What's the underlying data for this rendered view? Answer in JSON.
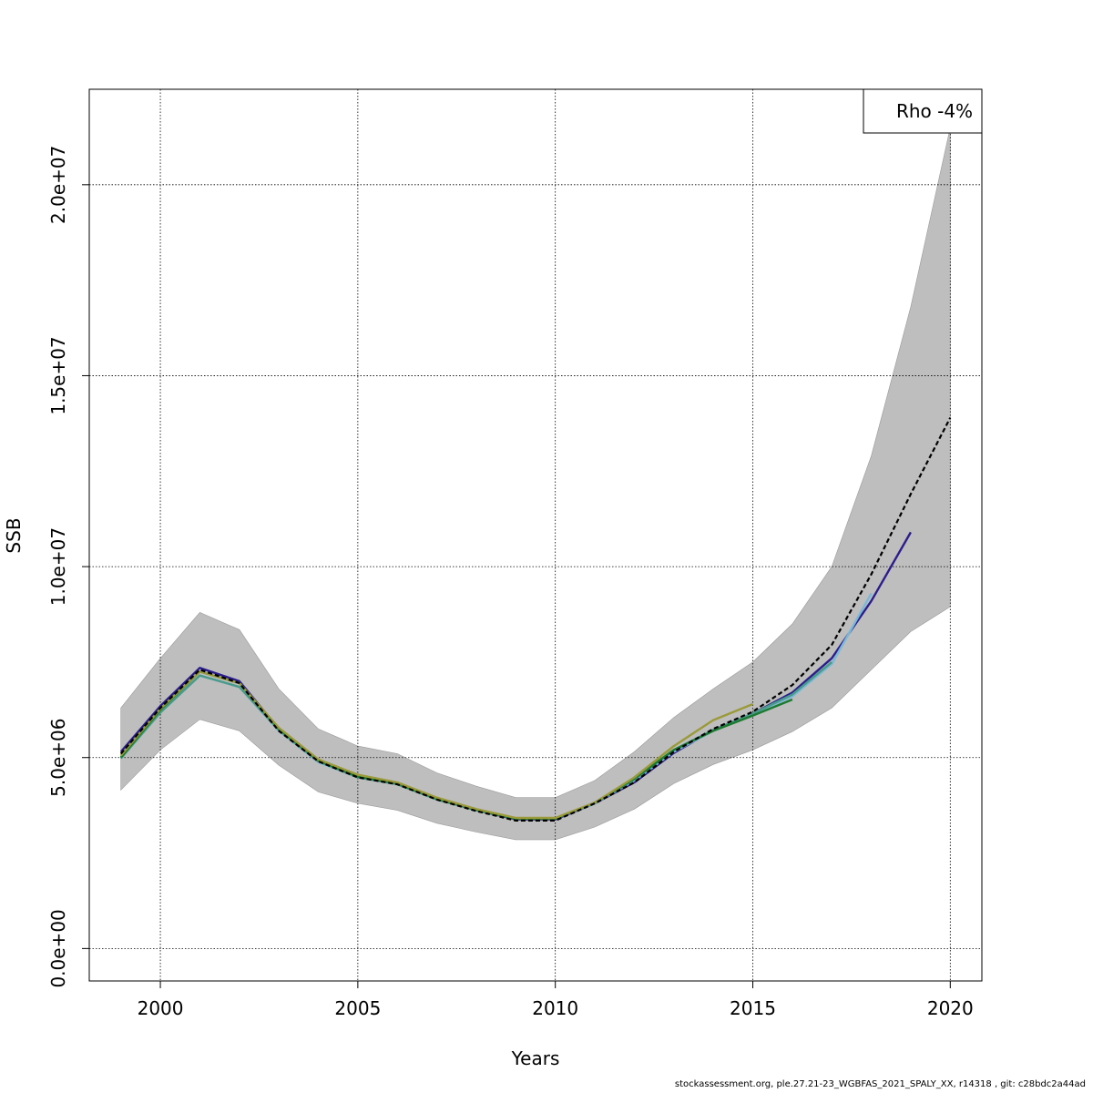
{
  "chart_data": {
    "type": "line",
    "title": "",
    "xlabel": "Years",
    "ylabel": "SSB",
    "xlim": [
      1998.2,
      2020.8
    ],
    "ylim": [
      -850000,
      22500000
    ],
    "x_ticks": [
      2000,
      2005,
      2010,
      2015,
      2020
    ],
    "x_tick_labels": [
      "2000",
      "2005",
      "2010",
      "2015",
      "2020"
    ],
    "y_ticks": [
      0,
      5000000,
      10000000,
      15000000,
      20000000
    ],
    "y_tick_labels": [
      "0.0e+00",
      "5.0e+06",
      "1.0e+07",
      "1.5e+07",
      "2.0e+07"
    ],
    "grid": true,
    "legend": {
      "text": "Rho -4%",
      "placement": "top-right"
    },
    "confidence_band": {
      "color": "#bebebe",
      "x": [
        1999,
        2000,
        2001,
        2002,
        2003,
        2004,
        2005,
        2006,
        2007,
        2008,
        2009,
        2010,
        2011,
        2012,
        2013,
        2014,
        2015,
        2016,
        2017,
        2018,
        2019,
        2020
      ],
      "upper": [
        6300000,
        7600000,
        8800000,
        8350000,
        6800000,
        5750000,
        5300000,
        5100000,
        4600000,
        4250000,
        3950000,
        3950000,
        4400000,
        5150000,
        6050000,
        6800000,
        7500000,
        8500000,
        10000000,
        12900000,
        16800000,
        21500000
      ],
      "lower": [
        4150000,
        5200000,
        6000000,
        5700000,
        4800000,
        4100000,
        3800000,
        3620000,
        3280000,
        3050000,
        2850000,
        2850000,
        3180000,
        3650000,
        4320000,
        4820000,
        5200000,
        5680000,
        6300000,
        7300000,
        8300000,
        8950000
      ]
    },
    "series": [
      {
        "color": "#000000",
        "dashed": true,
        "x": [
          1999,
          2000,
          2001,
          2002,
          2003,
          2004,
          2005,
          2006,
          2007,
          2008,
          2009,
          2010,
          2011,
          2012,
          2013,
          2014,
          2015,
          2016,
          2017,
          2018,
          2019,
          2020
        ],
        "values": [
          5100000,
          6300000,
          7300000,
          6950000,
          5700000,
          4900000,
          4480000,
          4300000,
          3900000,
          3600000,
          3350000,
          3350000,
          3800000,
          4350000,
          5150000,
          5750000,
          6200000,
          6900000,
          7950000,
          9800000,
          11900000,
          13900000
        ]
      },
      {
        "color": "#2b1d8c",
        "x": [
          1999,
          2000,
          2001,
          2002,
          2003,
          2004,
          2005,
          2006,
          2007,
          2008,
          2009,
          2010,
          2011,
          2012,
          2013,
          2014,
          2015,
          2016,
          2017,
          2018,
          2019
        ],
        "values": [
          5150000,
          6350000,
          7350000,
          7000000,
          5750000,
          4900000,
          4500000,
          4320000,
          3920000,
          3620000,
          3380000,
          3380000,
          3800000,
          4350000,
          5120000,
          5720000,
          6150000,
          6700000,
          7600000,
          9100000,
          10900000
        ]
      },
      {
        "color": "#7ab8d8",
        "x": [
          1999,
          2000,
          2001,
          2002,
          2003,
          2004,
          2005,
          2006,
          2007,
          2008,
          2009,
          2010,
          2011,
          2012,
          2013,
          2014,
          2015,
          2016,
          2017,
          2018
        ],
        "values": [
          5000000,
          6200000,
          7150000,
          6850000,
          5700000,
          4880000,
          4480000,
          4300000,
          3900000,
          3620000,
          3400000,
          3400000,
          3800000,
          4400000,
          5150000,
          5700000,
          6150000,
          6600000,
          7450000,
          9300000
        ]
      },
      {
        "color": "#4a9a8a",
        "x": [
          1999,
          2000,
          2001,
          2002,
          2003,
          2004,
          2005,
          2006,
          2007,
          2008,
          2009,
          2010,
          2011,
          2012,
          2013,
          2014,
          2015,
          2016,
          2017
        ],
        "values": [
          4980000,
          6180000,
          7150000,
          6850000,
          5720000,
          4900000,
          4480000,
          4300000,
          3900000,
          3620000,
          3400000,
          3400000,
          3800000,
          4420000,
          5200000,
          5720000,
          6150000,
          6650000,
          7500000
        ]
      },
      {
        "color": "#1a7a2e",
        "x": [
          1999,
          2000,
          2001,
          2002,
          2003,
          2004,
          2005,
          2006,
          2007,
          2008,
          2009,
          2010,
          2011,
          2012,
          2013,
          2014,
          2015,
          2016
        ],
        "values": [
          5000000,
          6250000,
          7250000,
          6950000,
          5750000,
          4920000,
          4500000,
          4320000,
          3920000,
          3630000,
          3400000,
          3400000,
          3820000,
          4450000,
          5200000,
          5700000,
          6100000,
          6520000
        ]
      },
      {
        "color": "#9a9a3a",
        "x": [
          1999,
          2000,
          2001,
          2002,
          2003,
          2004,
          2005,
          2006,
          2007,
          2008,
          2009,
          2010,
          2011,
          2012,
          2013,
          2014,
          2015
        ],
        "values": [
          5050000,
          6280000,
          7250000,
          6950000,
          5780000,
          4950000,
          4550000,
          4350000,
          3950000,
          3650000,
          3420000,
          3420000,
          3820000,
          4480000,
          5300000,
          5980000,
          6400000
        ]
      }
    ]
  },
  "footer": "stockassessment.org, ple.27.21-23_WGBFAS_2021_SPALY_XX, r14318 , git: c28bdc2a44ad"
}
